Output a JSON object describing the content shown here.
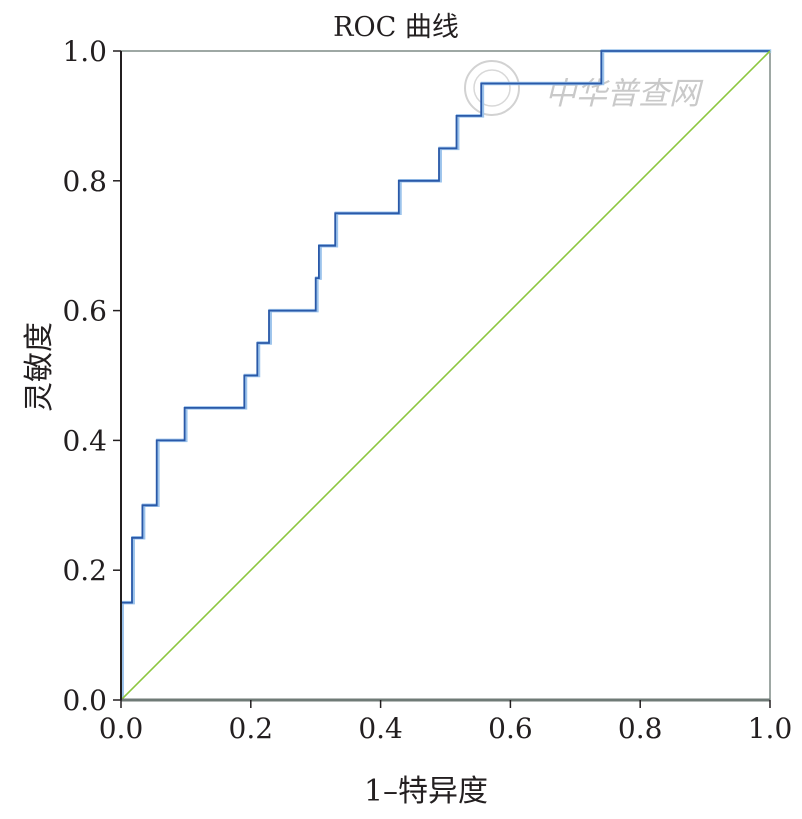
{
  "chart_data": {
    "type": "line",
    "title": "ROC 曲线",
    "xlabel": "1–特异度",
    "ylabel": "灵敏度",
    "xlim": [
      0,
      1
    ],
    "ylim": [
      0,
      1
    ],
    "x_ticks": [
      "0.0",
      "0.2",
      "0.4",
      "0.6",
      "0.8",
      "1.0"
    ],
    "y_ticks": [
      "0.0",
      "0.2",
      "0.4",
      "0.6",
      "0.8",
      "1.0"
    ],
    "grid": false,
    "series": [
      {
        "color": "#2a59a8",
        "points": [
          [
            0.0,
            0.0
          ],
          [
            0.0,
            0.15
          ],
          [
            0.017,
            0.15
          ],
          [
            0.017,
            0.25
          ],
          [
            0.033,
            0.25
          ],
          [
            0.033,
            0.3
          ],
          [
            0.055,
            0.3
          ],
          [
            0.055,
            0.4
          ],
          [
            0.098,
            0.4
          ],
          [
            0.098,
            0.45
          ],
          [
            0.19,
            0.45
          ],
          [
            0.19,
            0.5
          ],
          [
            0.21,
            0.5
          ],
          [
            0.21,
            0.55
          ],
          [
            0.228,
            0.55
          ],
          [
            0.228,
            0.6
          ],
          [
            0.3,
            0.6
          ],
          [
            0.3,
            0.65
          ],
          [
            0.305,
            0.65
          ],
          [
            0.305,
            0.7
          ],
          [
            0.33,
            0.7
          ],
          [
            0.33,
            0.75
          ],
          [
            0.428,
            0.75
          ],
          [
            0.428,
            0.8
          ],
          [
            0.49,
            0.8
          ],
          [
            0.49,
            0.85
          ],
          [
            0.517,
            0.85
          ],
          [
            0.517,
            0.9
          ],
          [
            0.555,
            0.9
          ],
          [
            0.555,
            0.95
          ],
          [
            0.74,
            0.95
          ],
          [
            0.74,
            1.0
          ],
          [
            1.0,
            1.0
          ]
        ]
      },
      {
        "color": "#8dc63f",
        "points": [
          [
            0.0,
            0.0
          ],
          [
            1.0,
            1.0
          ]
        ]
      }
    ]
  },
  "watermark": {
    "text": "中华普查网"
  }
}
